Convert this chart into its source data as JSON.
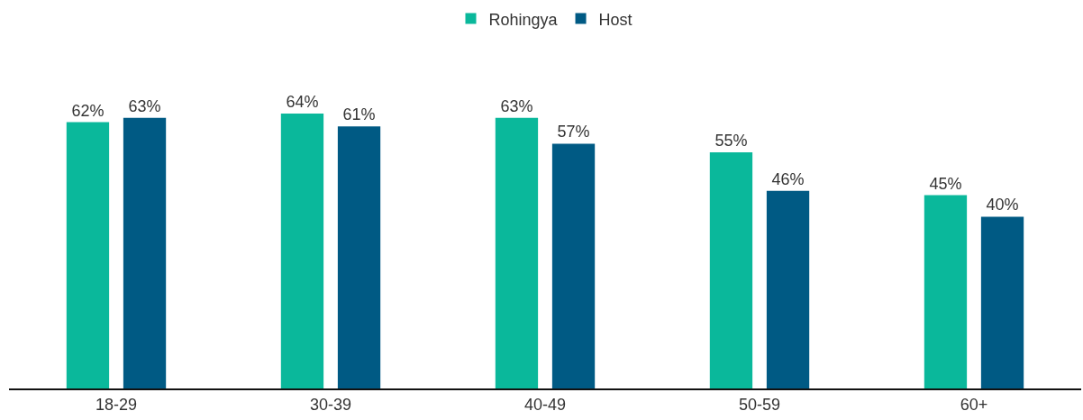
{
  "chart_data": {
    "type": "bar",
    "categories": [
      "18-29",
      "30-39",
      "40-49",
      "50-59",
      "60+"
    ],
    "series": [
      {
        "name": "Rohingya",
        "color": "#0ab89b",
        "values": [
          62,
          64,
          63,
          55,
          45
        ],
        "value_labels": [
          "62%",
          "64%",
          "63%",
          "55%",
          "45%"
        ]
      },
      {
        "name": "Host",
        "color": "#005a84",
        "values": [
          63,
          61,
          57,
          46,
          40
        ],
        "value_labels": [
          "63%",
          "61%",
          "57%",
          "46%",
          "40%"
        ]
      }
    ],
    "legend": "top",
    "grid": false,
    "tick_labels": "x"
  }
}
